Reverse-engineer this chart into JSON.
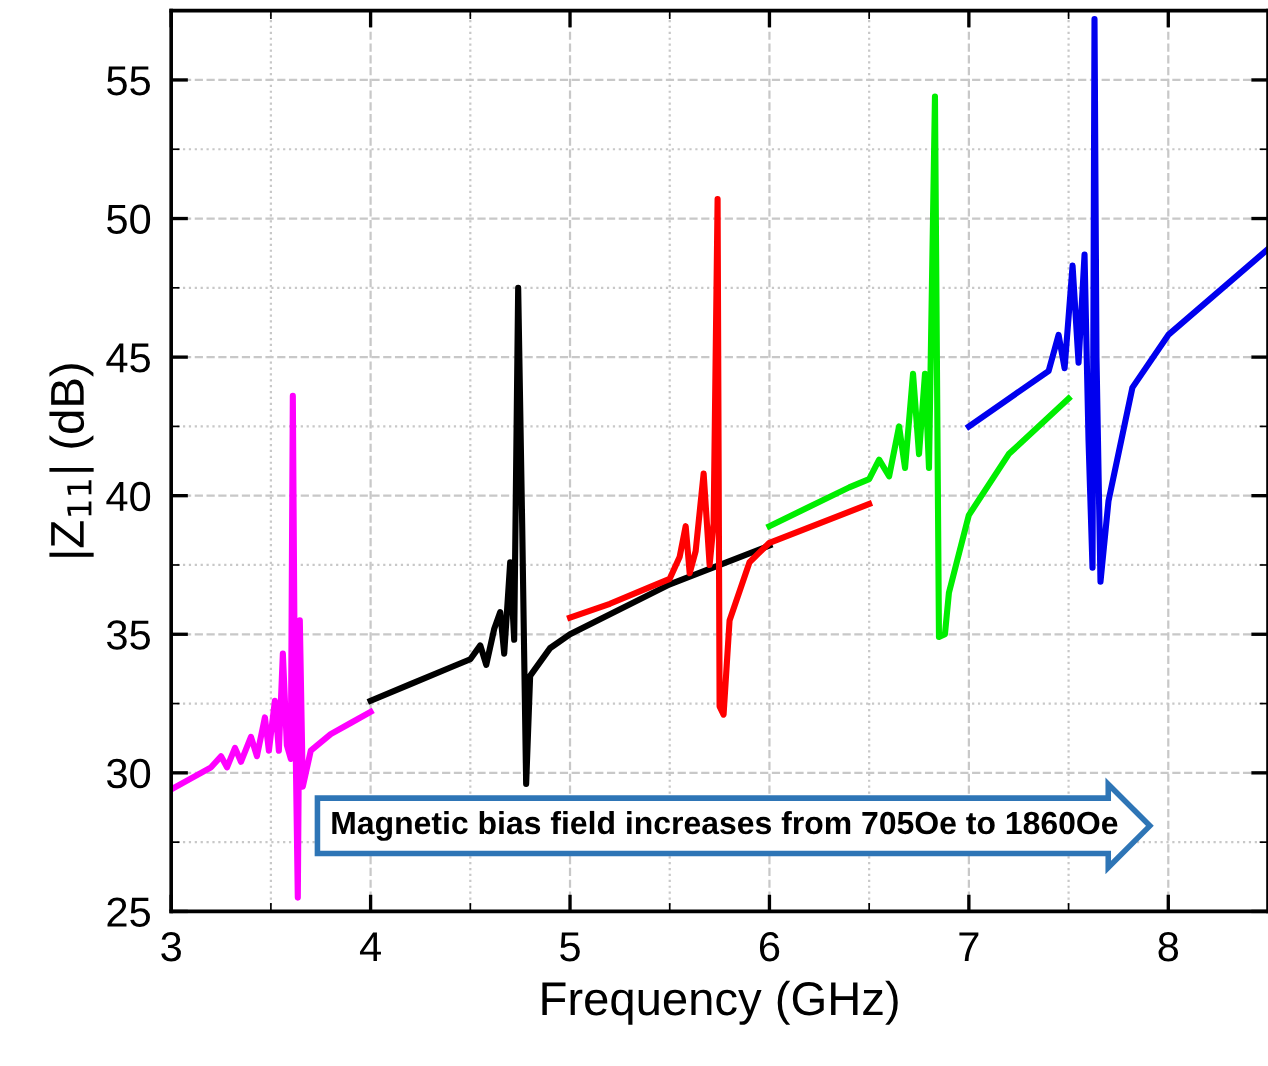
{
  "chart_data": {
    "type": "line",
    "xlabel": "Frequency (GHz)",
    "ylabel": "|Z$_{11}$| (dB)",
    "xlim": [
      3,
      8.5
    ],
    "ylim": [
      25,
      57.5
    ],
    "xticks": [
      3,
      4,
      5,
      6,
      7,
      8
    ],
    "yticks": [
      25,
      30,
      35,
      40,
      45,
      50,
      55
    ],
    "grid": true,
    "legend": false,
    "marker": "none",
    "line_style": "solid",
    "series": [
      {
        "color": "#ff00ff",
        "x": [
          3.0,
          3.1,
          3.2,
          3.25,
          3.28,
          3.32,
          3.35,
          3.4,
          3.43,
          3.47,
          3.49,
          3.52,
          3.54,
          3.56,
          3.58,
          3.6,
          3.61,
          3.62,
          3.635,
          3.645,
          3.66,
          3.7,
          3.8,
          3.9,
          4.0
        ],
        "values": [
          29.4,
          29.8,
          30.2,
          30.6,
          30.2,
          30.9,
          30.4,
          31.3,
          30.6,
          32.0,
          30.8,
          32.6,
          30.8,
          34.3,
          31.0,
          30.5,
          43.6,
          33.0,
          25.5,
          35.5,
          29.5,
          30.8,
          31.4,
          31.8,
          32.2
        ]
      },
      {
        "color": "#000000",
        "x": [
          4.0,
          4.2,
          4.4,
          4.5,
          4.55,
          4.58,
          4.62,
          4.65,
          4.67,
          4.7,
          4.72,
          4.74,
          4.76,
          4.78,
          4.8,
          4.9,
          5.0,
          5.5,
          6.0
        ],
        "values": [
          32.6,
          33.2,
          33.8,
          34.1,
          34.6,
          33.9,
          35.2,
          35.8,
          34.3,
          37.6,
          34.8,
          47.5,
          39.0,
          29.6,
          33.5,
          34.5,
          35.0,
          36.8,
          38.2
        ]
      },
      {
        "color": "#ff0000",
        "x": [
          5.0,
          5.2,
          5.4,
          5.5,
          5.55,
          5.58,
          5.6,
          5.63,
          5.67,
          5.7,
          5.72,
          5.74,
          5.75,
          5.77,
          5.8,
          5.9,
          6.0,
          6.5
        ],
        "values": [
          35.6,
          36.1,
          36.7,
          37.0,
          37.8,
          38.9,
          37.2,
          38.0,
          40.8,
          37.5,
          39.0,
          50.7,
          32.4,
          32.1,
          35.5,
          37.6,
          38.3,
          39.7
        ]
      },
      {
        "color": "#00ee00",
        "x": [
          6.0,
          6.2,
          6.4,
          6.5,
          6.55,
          6.6,
          6.65,
          6.68,
          6.72,
          6.75,
          6.78,
          6.8,
          6.83,
          6.85,
          6.88,
          6.9,
          7.0,
          7.2,
          7.5
        ],
        "values": [
          38.9,
          39.6,
          40.3,
          40.6,
          41.3,
          40.7,
          42.5,
          41.0,
          44.4,
          41.5,
          44.4,
          41.0,
          54.4,
          34.9,
          35.0,
          36.5,
          39.3,
          41.5,
          43.5
        ]
      },
      {
        "color": "#0000ee",
        "x": [
          7.0,
          7.2,
          7.4,
          7.45,
          7.48,
          7.52,
          7.55,
          7.58,
          7.6,
          7.62,
          7.63,
          7.64,
          7.66,
          7.7,
          7.82,
          8.0,
          8.5
        ],
        "values": [
          42.5,
          43.5,
          44.5,
          45.8,
          44.6,
          48.3,
          44.8,
          48.7,
          42.0,
          37.4,
          57.2,
          45.0,
          36.9,
          39.8,
          43.9,
          45.8,
          48.9
        ]
      }
    ],
    "annotations": [
      "Magnetic bias field increases from 705Oe to 1860Oe"
    ]
  }
}
